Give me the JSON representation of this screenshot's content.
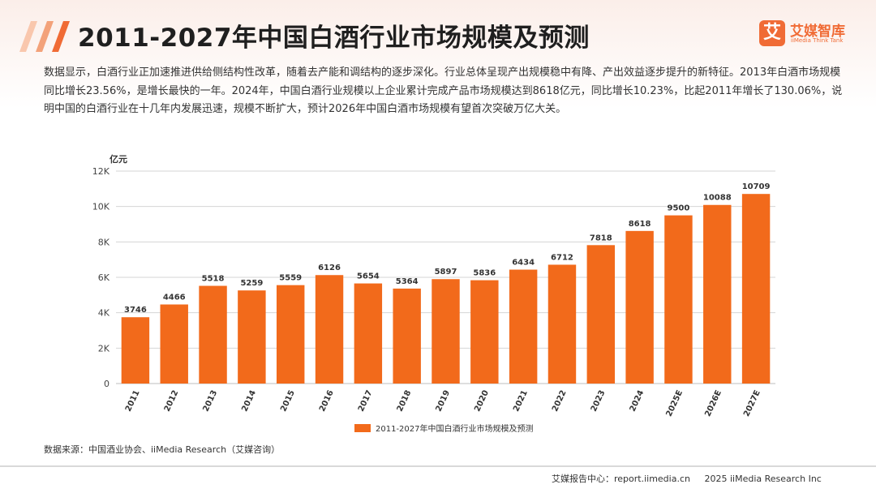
{
  "header": {
    "title": "2011-2027年中国白酒行业市场规模及预测",
    "brand_mark": "艾",
    "brand_name": "艾媒智库",
    "brand_sub": "iiMedia Think Tank"
  },
  "description": "数据显示，白酒行业正加速推进供给侧结构性改革，随着去产能和调结构的逐步深化。行业总体呈现产出规模稳中有降、产出效益逐步提升的新特征。2013年白酒市场规模同比增长23.56%，是增长最快的一年。2024年，中国白酒行业规模以上企业累计完成产品市场规模达到8618亿元，同比增长10.23%，比起2011年增长了130.06%，说明中国的白酒行业在十几年内发展迅速，规模不断扩大，预计2026年中国白酒市场规模有望首次突破万亿大关。",
  "chart_data": {
    "type": "bar",
    "unit": "亿元",
    "categories": [
      "2011",
      "2012",
      "2013",
      "2014",
      "2015",
      "2016",
      "2017",
      "2018",
      "2019",
      "2020",
      "2021",
      "2022",
      "2023",
      "2024",
      "2025E",
      "2026E",
      "2027E"
    ],
    "series": [
      {
        "name": "2011-2027年中国白酒行业市场规模及预测",
        "values": [
          3746,
          4466,
          5518,
          5259,
          5559,
          6126,
          5654,
          5364,
          5897,
          5836,
          6434,
          6712,
          7818,
          8618,
          9500,
          10088,
          10709
        ]
      }
    ],
    "y_ticks": [
      "0",
      "2K",
      "4K",
      "6K",
      "8K",
      "10K",
      "12K"
    ],
    "ylim": [
      0,
      12000
    ],
    "grid": true,
    "legend_position": "bottom-center",
    "bar_color": "#f26a1b"
  },
  "source": "数据来源：中国酒业协会、iiMedia Research（艾媒咨询）",
  "footer": {
    "center": "艾媒报告中心：report.iimedia.cn",
    "copyright": "2025 iiMedia Research Inc"
  },
  "colors": {
    "accent": "#f06b35",
    "bar": "#f26a1b"
  }
}
